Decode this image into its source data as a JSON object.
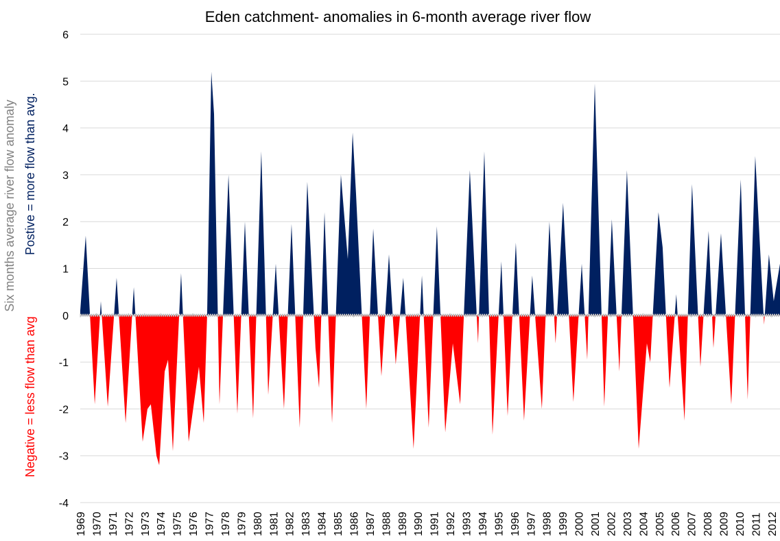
{
  "chart_data": {
    "type": "area",
    "title": "Eden catchment- anomalies in 6-month average river flow",
    "y_label": "Six months average river flow anomaly",
    "y_label_negative": "Negative = less flow than avg",
    "y_label_positive": "Postive = more flow than avg.",
    "positive_color": "#002060",
    "negative_color": "#ff0000",
    "grid": true,
    "x": [
      1969.0,
      1969.34,
      1969.9,
      1970.28,
      1970.71,
      1971.26,
      1971.82,
      1972.33,
      1972.88,
      1973.18,
      1973.39,
      1973.74,
      1973.91,
      1974.25,
      1974.46,
      1974.76,
      1975.27,
      1975.74,
      1976.38,
      1976.68,
      1976.89,
      1977.15,
      1977.32,
      1977.66,
      1978.22,
      1978.77,
      1979.24,
      1979.75,
      1980.26,
      1980.69,
      1981.16,
      1981.67,
      1982.14,
      1982.65,
      1983.12,
      1983.63,
      1983.85,
      1984.19,
      1984.66,
      1985.21,
      1985.64,
      1985.94,
      1986.15,
      1986.79,
      1987.22,
      1987.73,
      1988.2,
      1988.62,
      1989.09,
      1989.73,
      1990.25,
      1990.67,
      1991.18,
      1991.7,
      1992.17,
      1992.63,
      1993.23,
      1993.74,
      1994.13,
      1994.64,
      1995.19,
      1995.58,
      1996.09,
      1996.6,
      1997.11,
      1997.71,
      1998.18,
      1998.56,
      1999.03,
      1999.67,
      2000.19,
      2000.53,
      2001.0,
      2001.59,
      2002.06,
      2002.53,
      2003.0,
      2003.73,
      2004.24,
      2004.45,
      2004.96,
      2005.22,
      2005.65,
      2006.07,
      2006.58,
      2007.05,
      2007.57,
      2008.08,
      2008.38,
      2008.85,
      2009.49,
      2010.08,
      2010.51,
      2010.98,
      2011.53,
      2011.83,
      2012.13,
      2012.52
    ],
    "values": [
      0.1,
      1.7,
      -1.9,
      0.3,
      -1.95,
      0.8,
      -2.3,
      0.6,
      -2.7,
      -2.0,
      -1.9,
      -3.0,
      -3.2,
      -1.2,
      -0.95,
      -2.9,
      0.9,
      -2.7,
      -1.1,
      -2.3,
      0,
      5.2,
      4.3,
      -1.9,
      3.0,
      -2.1,
      2.0,
      -2.2,
      3.5,
      -1.7,
      1.1,
      -2.0,
      1.95,
      -2.4,
      2.85,
      -0.7,
      -1.55,
      2.2,
      -2.3,
      3.0,
      1.2,
      3.9,
      2.6,
      -2.0,
      1.85,
      -1.3,
      1.3,
      -1.05,
      0.8,
      -2.85,
      0.85,
      -2.4,
      1.9,
      -2.5,
      -0.6,
      -1.9,
      3.1,
      -0.6,
      3.5,
      -2.55,
      1.15,
      -2.15,
      1.55,
      -2.25,
      0.85,
      -2.0,
      2.0,
      -0.6,
      2.4,
      -1.85,
      1.1,
      -0.95,
      4.95,
      -1.95,
      2.05,
      -1.2,
      3.1,
      -2.85,
      -0.6,
      -1.0,
      2.2,
      1.45,
      -1.55,
      0.45,
      -2.25,
      2.8,
      -1.1,
      1.8,
      -0.7,
      1.75,
      -1.9,
      2.9,
      -1.8,
      3.4,
      -0.2,
      1.3,
      0.3,
      1.1
    ],
    "xlim": [
      1969,
      2012.52
    ],
    "xticks": [
      1969,
      1970,
      1971,
      1972,
      1973,
      1974,
      1975,
      1976,
      1977,
      1978,
      1979,
      1980,
      1981,
      1982,
      1983,
      1984,
      1985,
      1986,
      1987,
      1988,
      1989,
      1990,
      1991,
      1992,
      1993,
      1994,
      1995,
      1996,
      1997,
      1998,
      1999,
      2000,
      2001,
      2002,
      2003,
      2004,
      2005,
      2006,
      2007,
      2008,
      2009,
      2010,
      2011,
      2012
    ],
    "ylim": [
      -4,
      6
    ],
    "yticks": [
      -4,
      -3,
      -2,
      -1,
      0,
      1,
      2,
      3,
      4,
      5,
      6
    ]
  }
}
